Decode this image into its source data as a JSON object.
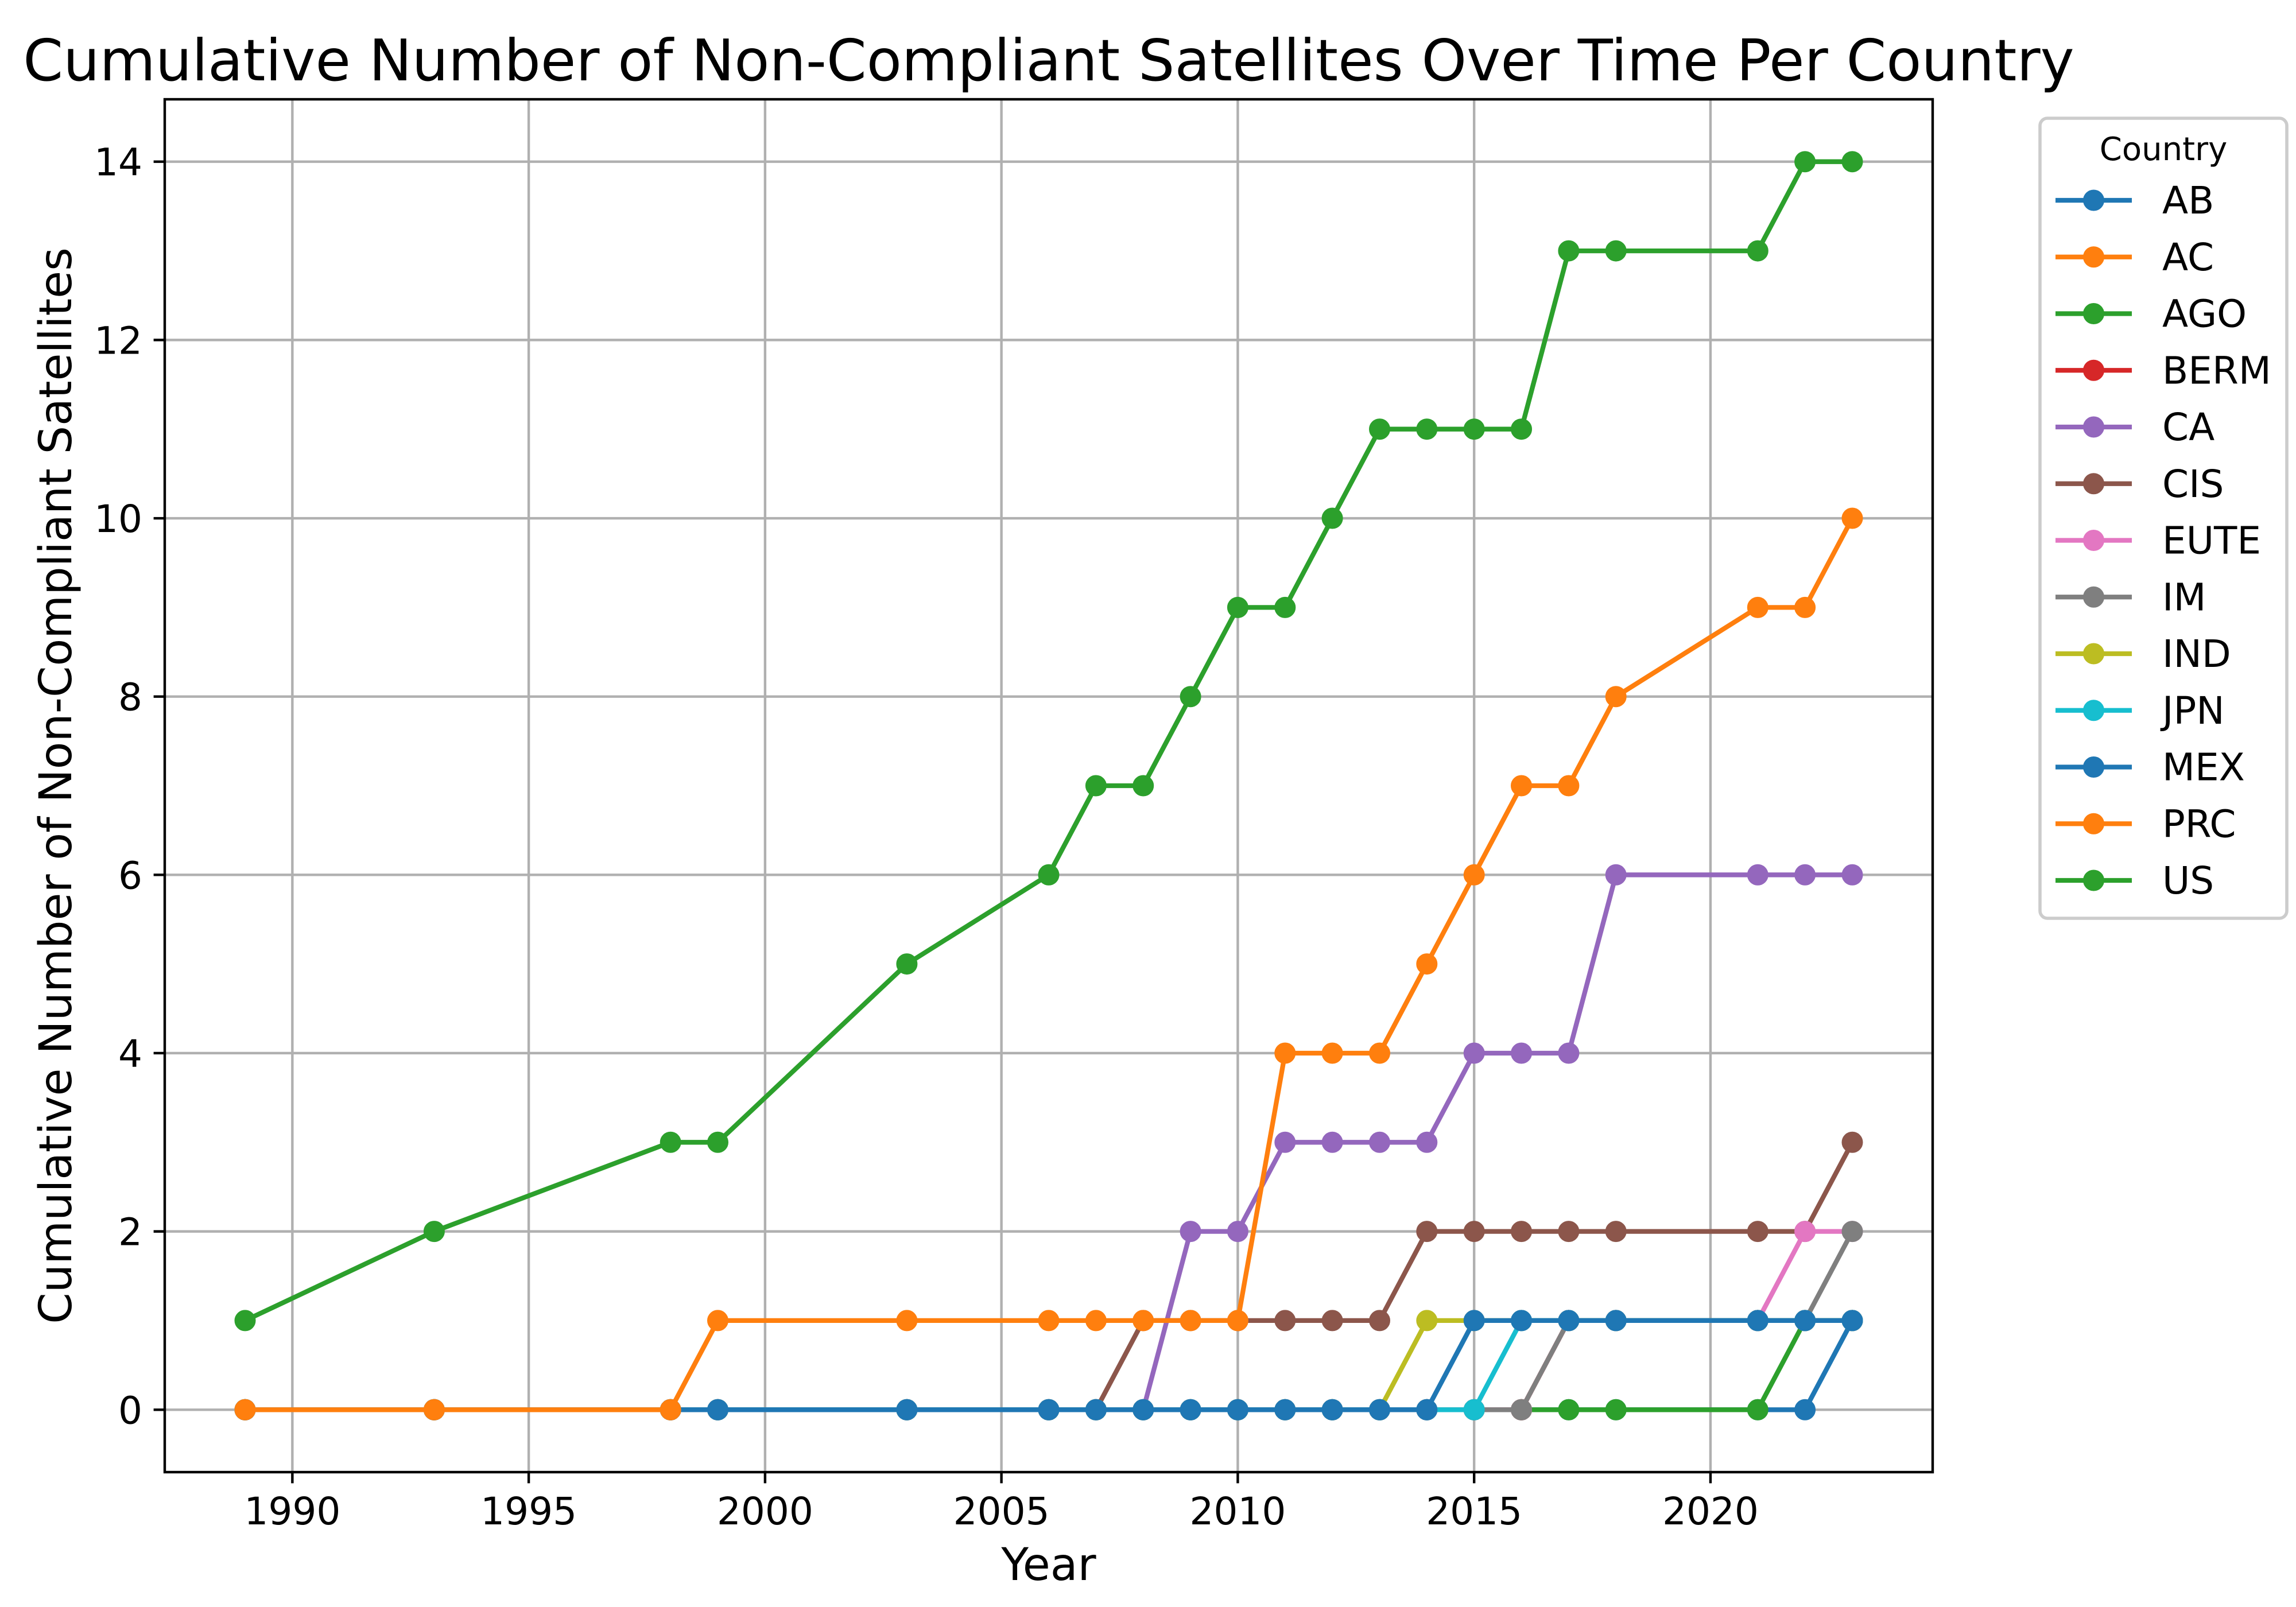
{
  "chart_data": {
    "type": "line",
    "title": "Cumulative Number of Non-Compliant Satellites Over Time Per Country",
    "xlabel": "Year",
    "ylabel": "Cumulative Number of Non-Compliant Satellites",
    "xlim": [
      1987.3,
      2024.7
    ],
    "ylim": [
      -0.7,
      14.7
    ],
    "x_ticks": [
      1990,
      1995,
      2000,
      2005,
      2010,
      2015,
      2020
    ],
    "y_ticks": [
      0,
      2,
      4,
      6,
      8,
      10,
      12,
      14
    ],
    "grid": true,
    "marker": "circle",
    "legend": {
      "title": "Country",
      "placement": "outside-right-top"
    },
    "x": [
      1989,
      1993,
      1998,
      1999,
      2003,
      2006,
      2007,
      2008,
      2009,
      2010,
      2011,
      2012,
      2013,
      2014,
      2015,
      2016,
      2017,
      2018,
      2021,
      2022,
      2023
    ],
    "series": [
      {
        "name": "AB",
        "color": "#1f77b4",
        "values": [
          0,
          0,
          0,
          0,
          0,
          0,
          0,
          0,
          0,
          0,
          0,
          0,
          0,
          0,
          0,
          0,
          0,
          0,
          0,
          0,
          1
        ]
      },
      {
        "name": "AC",
        "color": "#ff7f0e",
        "values": [
          0,
          0,
          0,
          0,
          0,
          0,
          0,
          0,
          0,
          0,
          0,
          0,
          0,
          0,
          0,
          0,
          1,
          1,
          1,
          1,
          1
        ]
      },
      {
        "name": "AGO",
        "color": "#2ca02c",
        "values": [
          0,
          0,
          0,
          0,
          0,
          0,
          0,
          0,
          0,
          0,
          0,
          0,
          0,
          0,
          0,
          0,
          0,
          0,
          0,
          1,
          1
        ]
      },
      {
        "name": "BERM",
        "color": "#d62728",
        "values": [
          0,
          0,
          0,
          0,
          0,
          0,
          0,
          0,
          0,
          0,
          0,
          0,
          0,
          0,
          0,
          0,
          1,
          1,
          1,
          1,
          1
        ]
      },
      {
        "name": "CA",
        "color": "#9467bd",
        "values": [
          0,
          0,
          0,
          0,
          0,
          0,
          0,
          0,
          2,
          2,
          3,
          3,
          3,
          3,
          4,
          4,
          4,
          6,
          6,
          6,
          6
        ]
      },
      {
        "name": "CIS",
        "color": "#8c564b",
        "values": [
          0,
          0,
          0,
          0,
          0,
          0,
          0,
          1,
          1,
          1,
          1,
          1,
          1,
          2,
          2,
          2,
          2,
          2,
          2,
          2,
          3
        ]
      },
      {
        "name": "EUTE",
        "color": "#e377c2",
        "values": [
          0,
          0,
          0,
          0,
          0,
          0,
          0,
          0,
          0,
          0,
          0,
          0,
          0,
          0,
          0,
          0,
          1,
          1,
          1,
          2,
          2
        ]
      },
      {
        "name": "IM",
        "color": "#7f7f7f",
        "values": [
          0,
          0,
          0,
          0,
          0,
          0,
          0,
          0,
          0,
          0,
          0,
          0,
          0,
          0,
          0,
          0,
          1,
          1,
          1,
          1,
          2
        ]
      },
      {
        "name": "IND",
        "color": "#bcbd22",
        "values": [
          0,
          0,
          0,
          0,
          0,
          0,
          0,
          0,
          0,
          0,
          0,
          0,
          0,
          1,
          1,
          1,
          1,
          1,
          1,
          1,
          1
        ]
      },
      {
        "name": "JPN",
        "color": "#17becf",
        "values": [
          0,
          0,
          0,
          0,
          0,
          0,
          0,
          0,
          0,
          0,
          0,
          0,
          0,
          0,
          0,
          1,
          1,
          1,
          1,
          1,
          1
        ]
      },
      {
        "name": "MEX",
        "color": "#1f77b4",
        "values": [
          0,
          0,
          0,
          0,
          0,
          0,
          0,
          0,
          0,
          0,
          0,
          0,
          0,
          0,
          1,
          1,
          1,
          1,
          1,
          1,
          1
        ]
      },
      {
        "name": "PRC",
        "color": "#ff7f0e",
        "values": [
          0,
          0,
          0,
          1,
          1,
          1,
          1,
          1,
          1,
          1,
          4,
          4,
          4,
          5,
          6,
          7,
          7,
          8,
          9,
          9,
          10
        ]
      },
      {
        "name": "US",
        "color": "#2ca02c",
        "values": [
          1,
          2,
          3,
          3,
          5,
          6,
          7,
          7,
          8,
          9,
          9,
          10,
          11,
          11,
          11,
          11,
          13,
          13,
          13,
          14,
          14
        ]
      }
    ]
  }
}
